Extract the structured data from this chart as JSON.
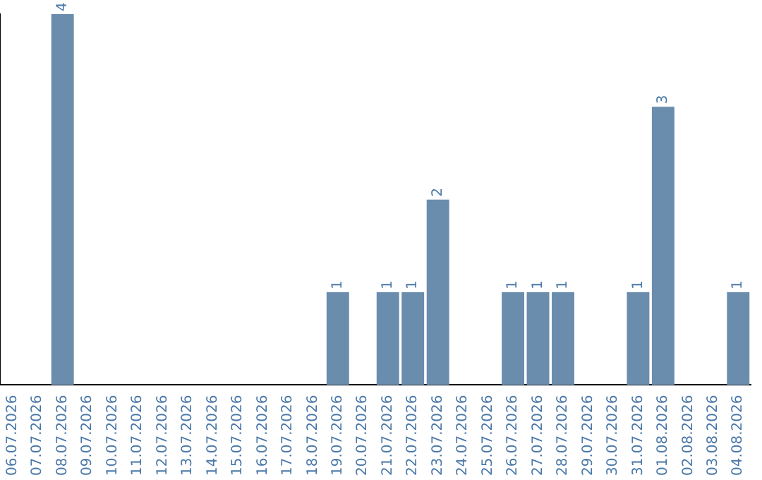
{
  "chart_data": {
    "type": "bar",
    "categories": [
      "06.07.2026",
      "07.07.2026",
      "08.07.2026",
      "09.07.2026",
      "10.07.2026",
      "11.07.2026",
      "12.07.2026",
      "13.07.2026",
      "14.07.2026",
      "15.07.2026",
      "16.07.2026",
      "17.07.2026",
      "18.07.2026",
      "19.07.2026",
      "20.07.2026",
      "21.07.2026",
      "22.07.2026",
      "23.07.2026",
      "24.07.2026",
      "25.07.2026",
      "26.07.2026",
      "27.07.2026",
      "28.07.2026",
      "29.07.2026",
      "30.07.2026",
      "31.07.2026",
      "01.08.2026",
      "02.08.2026",
      "03.08.2026",
      "04.08.2026"
    ],
    "values": [
      0,
      0,
      4,
      0,
      0,
      0,
      0,
      0,
      0,
      0,
      0,
      0,
      0,
      1,
      0,
      1,
      1,
      2,
      0,
      0,
      1,
      1,
      1,
      0,
      0,
      1,
      3,
      0,
      0,
      1
    ],
    "value_labels": [
      null,
      null,
      "4",
      null,
      null,
      null,
      null,
      null,
      null,
      null,
      null,
      null,
      null,
      "1",
      null,
      "1",
      "1",
      "2",
      null,
      null,
      "1",
      "1",
      "1",
      null,
      null,
      "1",
      "3",
      null,
      null,
      "1"
    ],
    "color": "#6a8cad",
    "grid": false,
    "legend": false,
    "tick_labels": "x"
  }
}
